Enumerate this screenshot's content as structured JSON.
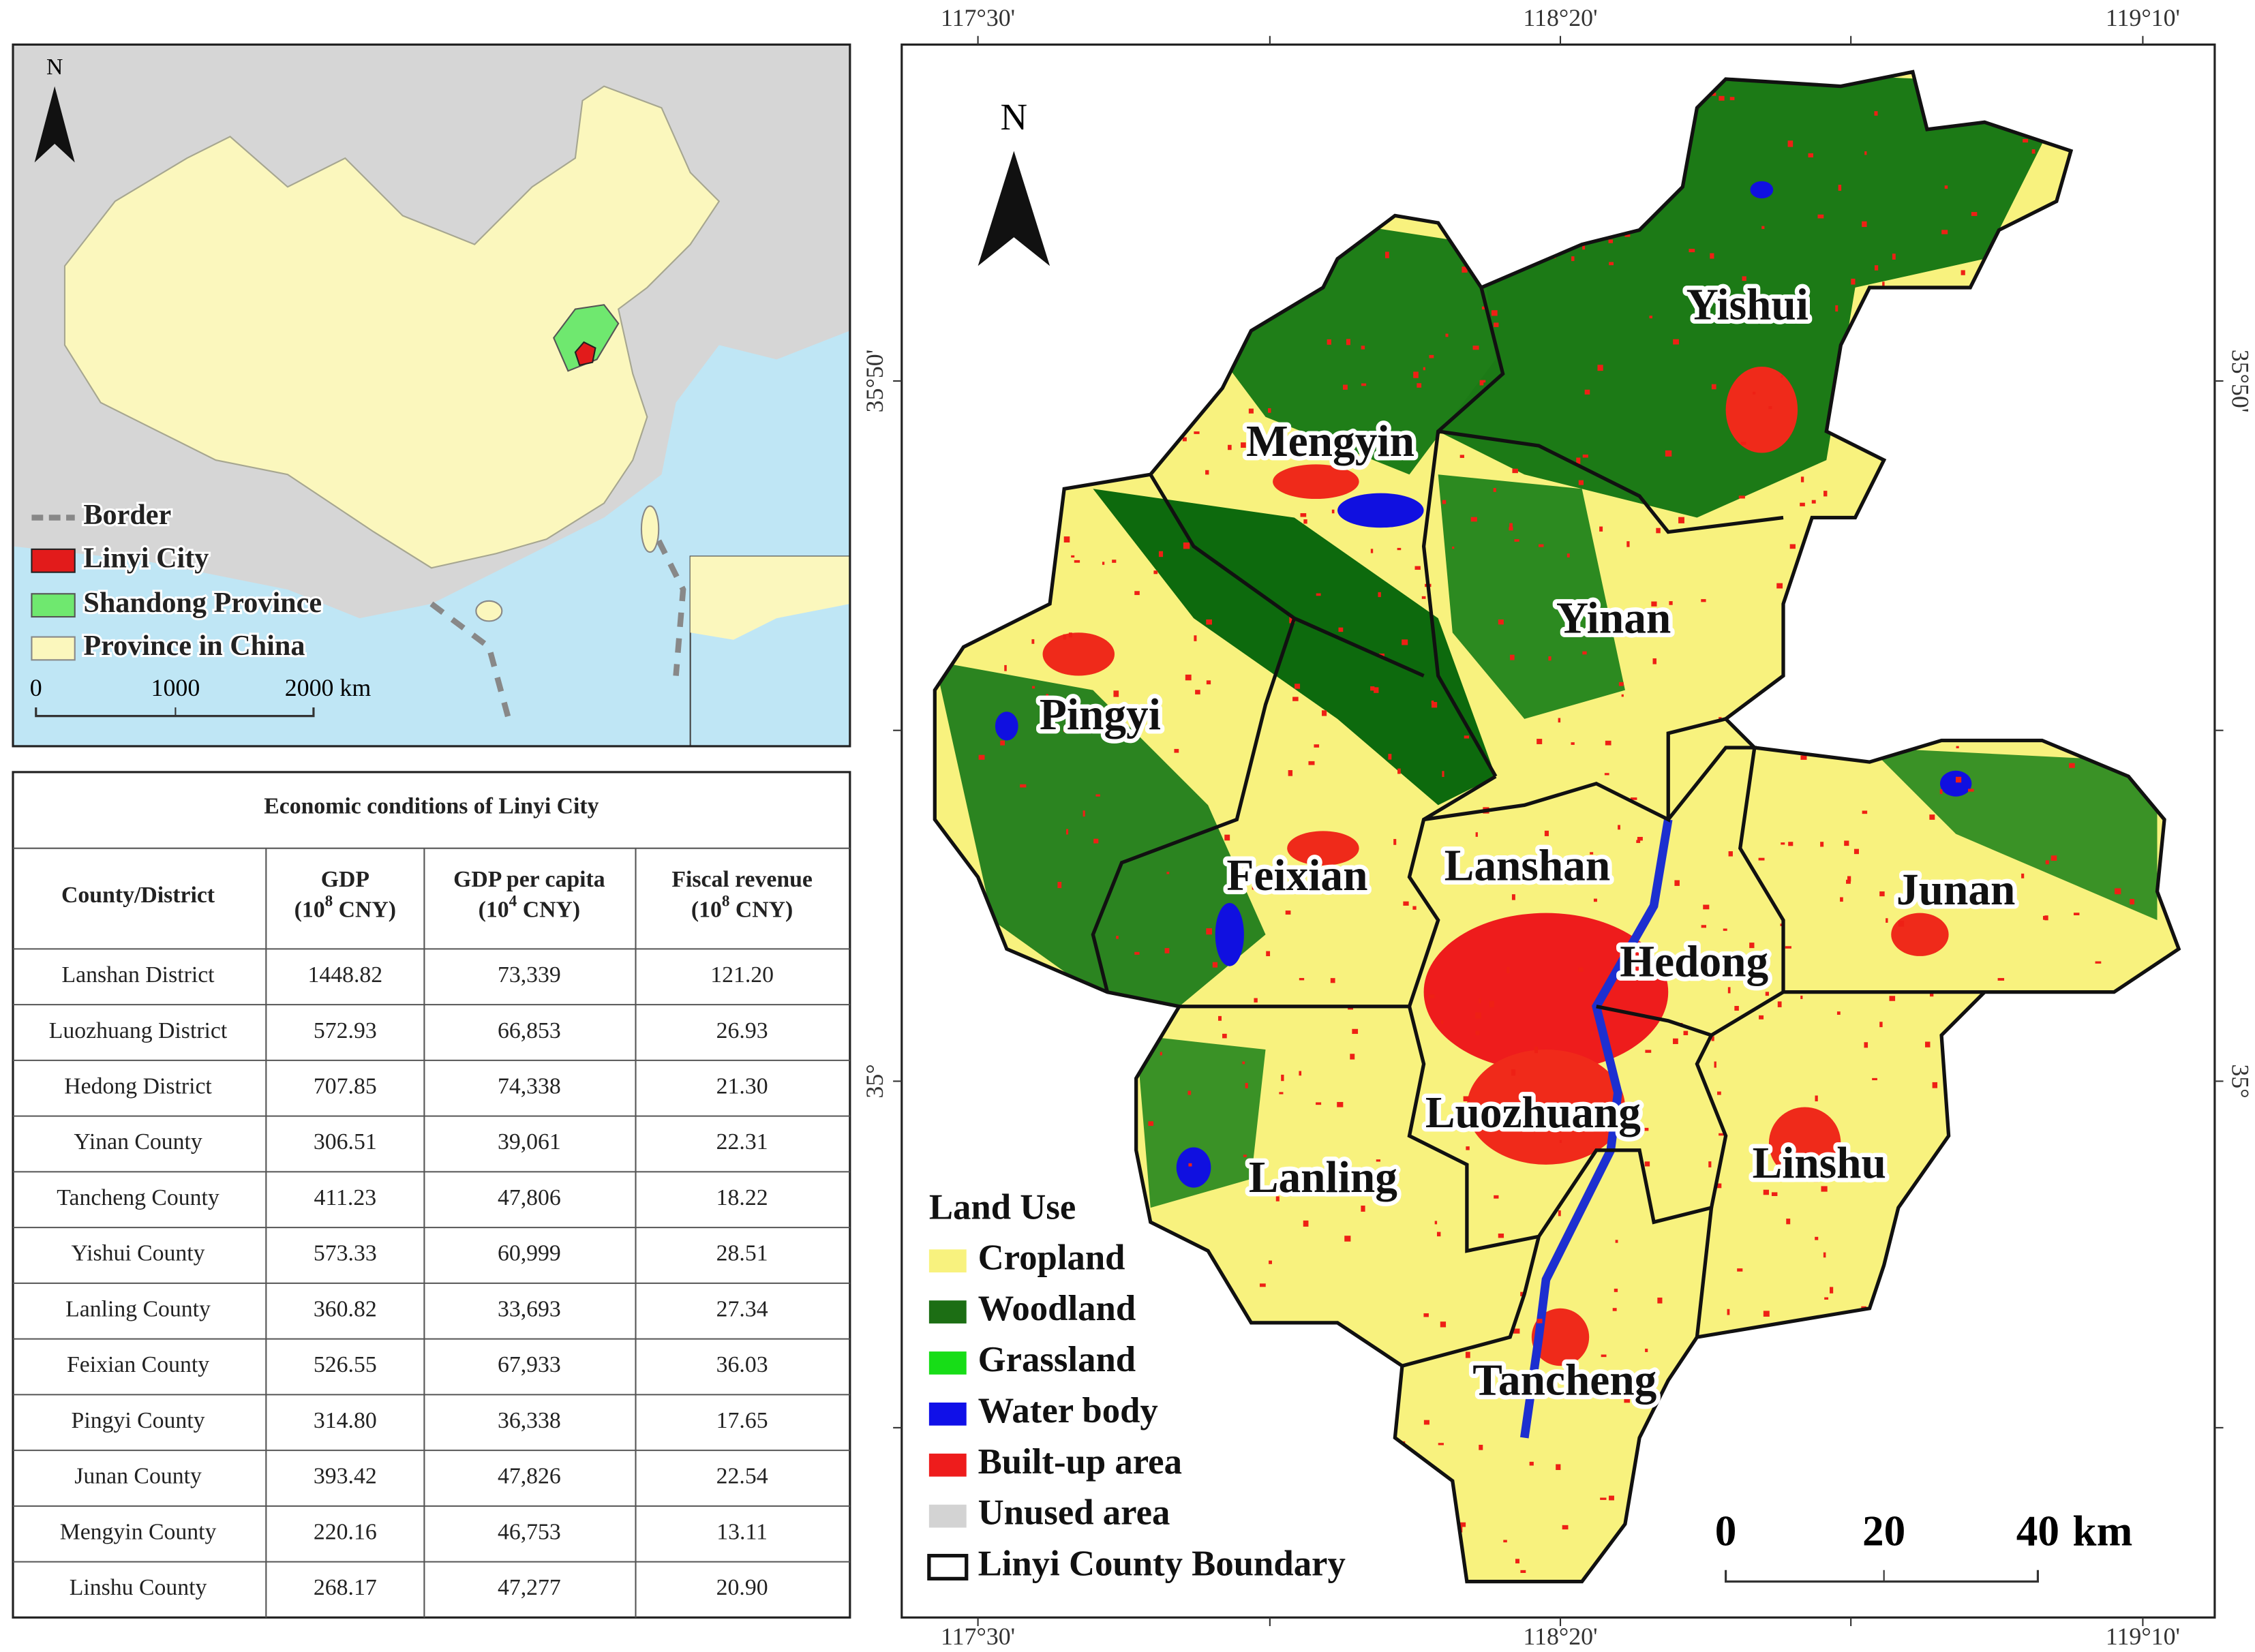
{
  "inset_map": {
    "north": "N",
    "legend": [
      "Border",
      "Linyi City",
      "Shandong Province",
      "Province in China"
    ],
    "scale": [
      "0",
      "1000",
      "2000 km"
    ]
  },
  "table": {
    "title": "Economic conditions of Linyi City",
    "header": [
      {
        "name": "County/District"
      },
      {
        "name": "GDP",
        "unit": "(10",
        "exp": "8",
        "unit_end": " CNY)"
      },
      {
        "name": "GDP per capita",
        "unit": "(10",
        "exp": "4",
        "unit_end": " CNY)"
      },
      {
        "name": "Fiscal revenue",
        "unit": "(10",
        "exp": "8",
        "unit_end": " CNY)"
      }
    ],
    "rows": [
      [
        "Lanshan District",
        "1448.82",
        "73,339",
        "121.20"
      ],
      [
        "Luozhuang District",
        "572.93",
        "66,853",
        "26.93"
      ],
      [
        "Hedong District",
        "707.85",
        "74,338",
        "21.30"
      ],
      [
        "Yinan County",
        "306.51",
        "39,061",
        "22.31"
      ],
      [
        "Tancheng County",
        "411.23",
        "47,806",
        "18.22"
      ],
      [
        "Yishui County",
        "573.33",
        "60,999",
        "28.51"
      ],
      [
        "Lanling County",
        "360.82",
        "33,693",
        "27.34"
      ],
      [
        "Feixian County",
        "526.55",
        "67,933",
        "36.03"
      ],
      [
        "Pingyi County",
        "314.80",
        "36,338",
        "17.65"
      ],
      [
        "Junan County",
        "393.42",
        "47,826",
        "22.54"
      ],
      [
        "Mengyin County",
        "220.16",
        "46,753",
        "13.11"
      ],
      [
        "Linshu County",
        "268.17",
        "47,277",
        "20.90"
      ]
    ]
  },
  "main_map": {
    "top_axis": [
      "117°30'",
      "118°20'",
      "119°10'"
    ],
    "bottom_axis": [
      "117°30'",
      "118°20'",
      "119°10'"
    ],
    "left_axis": [
      "35°50'",
      "35°"
    ],
    "right_axis": [
      "35°50'",
      "35°"
    ],
    "north": "N",
    "counties": [
      "Yishui",
      "Mengyin",
      "Yinan",
      "Pingyi",
      "Feixian",
      "Lanshan",
      "Junan",
      "Hedong",
      "Luozhuang",
      "Lanling",
      "Linshu",
      "Tancheng"
    ],
    "legend_title": "Land Use",
    "legend": [
      "Cropland",
      "Woodland",
      "Grassland",
      "Water body",
      "Built-up area",
      "Unused area",
      "Linyi County Boundary"
    ],
    "scale": [
      "0",
      "20",
      "40",
      "km"
    ]
  }
}
